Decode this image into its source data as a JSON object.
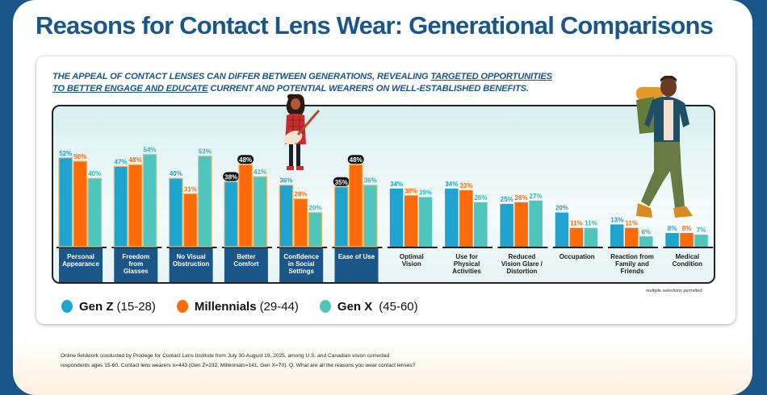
{
  "title": "Reasons for Contact Lens Wear: Generational Comparisons",
  "subtitle": {
    "part1": "THE APPEAL OF CONTACT LENSES CAN DIFFER BETWEEN GENERATIONS, REVEALING ",
    "part2_underlined": "TARGETED OPPORTUNITIES",
    "part3_underlined": "TO BETTER ENGAGE AND EDUCATE",
    "part4": " CURRENT AND POTENTIAL WEARERS ON WELL-ESTABLISHED BENEFITS."
  },
  "note": "multiple selections permitted",
  "footer": {
    "line1": "Online fieldwork conducted by Prodege for Contact Lens Institute from July 30-August 19, 2025, among U.S. and Canadian vision corrected",
    "line2": "respondents ages 15-60. Contact lens wearers n=443 (Gen Z=232, Millennials=141, Gen X=70). Q. What are all the reasons you wear contact lenses?"
  },
  "colors": {
    "gen_z": "#1ea4cf",
    "millennials": "#fd6a0a",
    "gen_x": "#4ec5bd",
    "navy": "#1a5788",
    "bar_outline": "#f7b865"
  },
  "icons": {
    "girl_illustration": "woman-with-guitar-illustration",
    "hiker_illustration": "hiker-with-backpack-illustration"
  },
  "chart_data": {
    "type": "bar",
    "title": "Reasons for Contact Lens Wear: Generational Comparisons",
    "xlabel": "",
    "ylabel": "",
    "ylim": [
      0,
      60
    ],
    "grid": false,
    "legend_position": "bottom-left",
    "value_suffix": "%",
    "categories": [
      [
        "Personal",
        "Appearance"
      ],
      [
        "Freedom",
        "from",
        "Glasses"
      ],
      [
        "No Visual",
        "Obstruction"
      ],
      [
        "Better",
        "Comfort"
      ],
      [
        "Confidence",
        "in Social",
        "Settings"
      ],
      [
        "Ease of Use"
      ],
      [
        "Optimal",
        "Vision"
      ],
      [
        "Use for",
        "Physical",
        "Activities"
      ],
      [
        "Reduced",
        "Vision Glare /",
        "Distortion"
      ],
      [
        "Occupation"
      ],
      [
        "Reaction from",
        "Family and",
        "Friends"
      ],
      [
        "Medical",
        "Condition"
      ]
    ],
    "highlighted_categories": [
      0,
      1,
      2,
      3,
      4,
      5
    ],
    "series": [
      {
        "name": "Gen Z",
        "range": "(15-28)",
        "values": [
          52,
          47,
          40,
          38,
          36,
          35,
          34,
          34,
          25,
          20,
          13,
          8
        ]
      },
      {
        "name": "Millennials",
        "range": "(29-44)",
        "values": [
          50,
          48,
          31,
          48,
          28,
          48,
          30,
          33,
          26,
          11,
          11,
          8
        ]
      },
      {
        "name": "Gen X",
        "range": "(45-60)",
        "values": [
          40,
          54,
          53,
          41,
          20,
          36,
          29,
          26,
          27,
          11,
          6,
          7
        ]
      }
    ],
    "callout_labels": [
      {
        "category": 3,
        "series": 0
      },
      {
        "category": 3,
        "series": 1
      },
      {
        "category": 5,
        "series": 0
      },
      {
        "category": 5,
        "series": 1
      }
    ]
  }
}
